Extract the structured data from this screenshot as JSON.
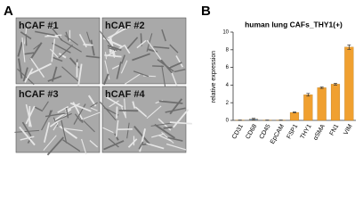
{
  "panels": {
    "a": "A",
    "b": "B"
  },
  "images": [
    "hCAF #1",
    "hCAF #2",
    "hCAF #3",
    "hCAF #4"
  ],
  "chart_data": {
    "type": "bar",
    "title": "human lung CAFs_THY1(+)",
    "y_label": "relative expression",
    "categories": [
      "CD31",
      "CD68",
      "CD45",
      "EpCAM",
      "FSP1",
      "THY1",
      "αSMA",
      "FN1",
      "VIM"
    ],
    "values": [
      0.02,
      0.15,
      0.02,
      0.02,
      0.9,
      2.9,
      3.7,
      4.1,
      8.3
    ],
    "errors": [
      0.02,
      0.08,
      0.02,
      0.02,
      0.05,
      0.15,
      0.08,
      0.1,
      0.25
    ],
    "colors": [
      "#f0a030",
      "#4a7fc0",
      "#f0a030",
      "#f0a030",
      "#f0a030",
      "#f0a030",
      "#f0a030",
      "#f0a030",
      "#f0a030"
    ],
    "ylim": [
      0,
      10
    ],
    "yticks": [
      0,
      2,
      4,
      6,
      8,
      10
    ]
  }
}
